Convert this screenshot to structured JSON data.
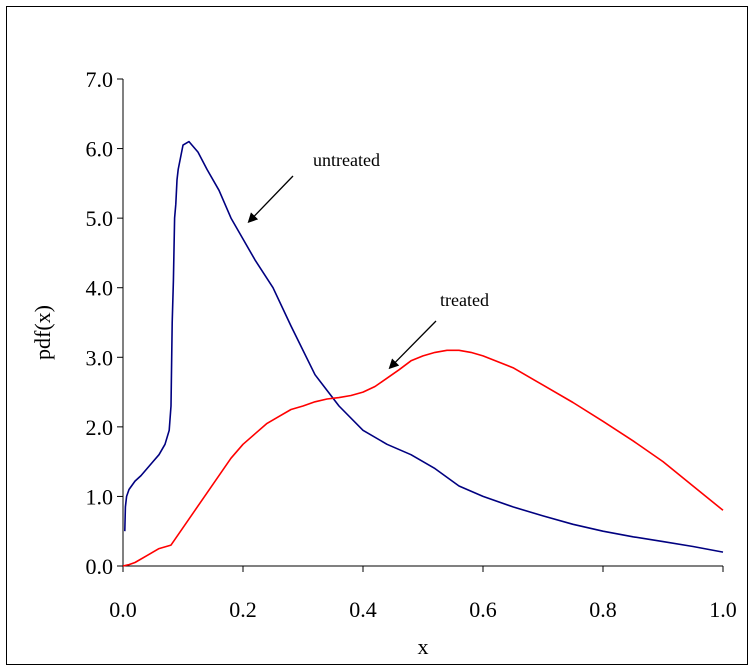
{
  "chart_data": {
    "type": "line",
    "title": "",
    "xlabel": "x",
    "ylabel": "pdf(x)",
    "xlim": [
      0.0,
      1.0
    ],
    "ylim": [
      0.0,
      7.0
    ],
    "xticks": [
      "0.0",
      "0.2",
      "0.4",
      "0.6",
      "0.8",
      "1.0"
    ],
    "yticks": [
      "0.0",
      "1.0",
      "2.0",
      "3.0",
      "4.0",
      "5.0",
      "6.0",
      "7.0"
    ],
    "grid": false,
    "series": [
      {
        "name": "untreated",
        "color": "#000080",
        "x": [
          0.003,
          0.004,
          0.006,
          0.01,
          0.02,
          0.03,
          0.04,
          0.05,
          0.06,
          0.07,
          0.077,
          0.08,
          0.082,
          0.084,
          0.086,
          0.088,
          0.09,
          0.092,
          0.1,
          0.11,
          0.115,
          0.125,
          0.14,
          0.16,
          0.18,
          0.2,
          0.22,
          0.25,
          0.28,
          0.32,
          0.36,
          0.4,
          0.44,
          0.48,
          0.52,
          0.56,
          0.6,
          0.65,
          0.7,
          0.75,
          0.8,
          0.85,
          0.9,
          0.95,
          1.0
        ],
        "y": [
          0.5,
          0.85,
          1.0,
          1.1,
          1.22,
          1.3,
          1.4,
          1.5,
          1.6,
          1.75,
          1.95,
          2.3,
          3.5,
          4.1,
          5.0,
          5.2,
          5.55,
          5.7,
          6.05,
          6.1,
          6.05,
          5.95,
          5.7,
          5.4,
          5.0,
          4.7,
          4.4,
          4.0,
          3.45,
          2.75,
          2.3,
          1.95,
          1.75,
          1.6,
          1.4,
          1.15,
          1.0,
          0.85,
          0.72,
          0.6,
          0.5,
          0.42,
          0.35,
          0.28,
          0.2
        ]
      },
      {
        "name": "treated",
        "color": "#ff0000",
        "x": [
          0.0,
          0.01,
          0.02,
          0.04,
          0.06,
          0.08,
          0.1,
          0.12,
          0.14,
          0.16,
          0.18,
          0.2,
          0.22,
          0.24,
          0.26,
          0.28,
          0.3,
          0.32,
          0.34,
          0.36,
          0.38,
          0.4,
          0.42,
          0.44,
          0.46,
          0.48,
          0.5,
          0.52,
          0.54,
          0.56,
          0.58,
          0.6,
          0.65,
          0.7,
          0.75,
          0.8,
          0.85,
          0.9,
          0.95,
          1.0
        ],
        "y": [
          0.0,
          0.02,
          0.05,
          0.15,
          0.25,
          0.3,
          0.55,
          0.8,
          1.05,
          1.3,
          1.55,
          1.75,
          1.9,
          2.05,
          2.15,
          2.25,
          2.3,
          2.36,
          2.4,
          2.42,
          2.45,
          2.5,
          2.58,
          2.7,
          2.82,
          2.95,
          3.02,
          3.07,
          3.1,
          3.1,
          3.07,
          3.02,
          2.85,
          2.6,
          2.35,
          2.08,
          1.8,
          1.5,
          1.15,
          0.8
        ]
      }
    ],
    "annotations": [
      {
        "text": "untreated",
        "arrow_to": [
          0.21,
          4.95
        ]
      },
      {
        "text": "treated",
        "arrow_to": [
          0.445,
          2.85
        ]
      }
    ]
  }
}
